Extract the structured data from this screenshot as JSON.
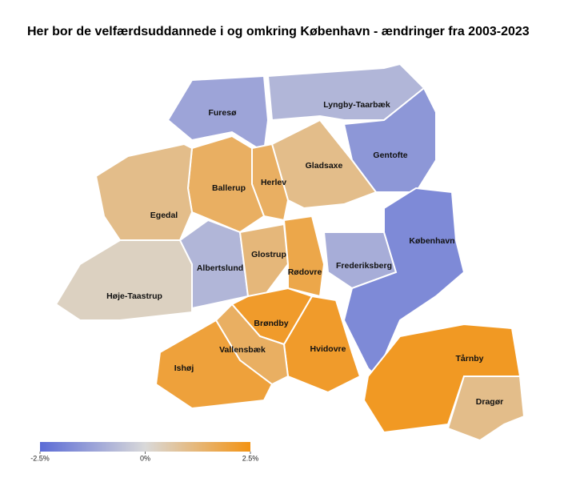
{
  "chart_data": {
    "type": "choropleth",
    "title": "Her bor de velfærdsuddannede i og omkring København - ændringer fra 2003-2023",
    "regions": [
      {
        "name": "Furesø",
        "value": -1.2
      },
      {
        "name": "Lyngby-Taarbæk",
        "value": -0.8
      },
      {
        "name": "Gentofte",
        "value": -1.5
      },
      {
        "name": "Gladsaxe",
        "value": 1.0
      },
      {
        "name": "Herlev",
        "value": 1.5
      },
      {
        "name": "Ballerup",
        "value": 1.5
      },
      {
        "name": "Egedal",
        "value": 1.0
      },
      {
        "name": "Høje-Taastrup",
        "value": 0.3
      },
      {
        "name": "Albertslund",
        "value": -0.8
      },
      {
        "name": "Glostrup",
        "value": 1.2
      },
      {
        "name": "Rødovre",
        "value": 1.8
      },
      {
        "name": "Frederiksberg",
        "value": -1.0
      },
      {
        "name": "København",
        "value": -1.8
      },
      {
        "name": "Hvidovre",
        "value": 2.2
      },
      {
        "name": "Brøndby",
        "value": 2.2
      },
      {
        "name": "Vallensbæk",
        "value": 1.5
      },
      {
        "name": "Ishøj",
        "value": 2.0
      },
      {
        "name": "Tårnby",
        "value": 2.3
      },
      {
        "name": "Dragør",
        "value": 1.0
      }
    ],
    "colorbar": {
      "range": [
        -2.5,
        2.5
      ],
      "ticks": [
        {
          "value": -2.5,
          "label": "-2.5%"
        },
        {
          "value": 0,
          "label": "0%"
        },
        {
          "value": 2.5,
          "label": "2.5%"
        }
      ],
      "colors": [
        "#5b6bd6",
        "#d9d9d9",
        "#f39313"
      ]
    }
  }
}
